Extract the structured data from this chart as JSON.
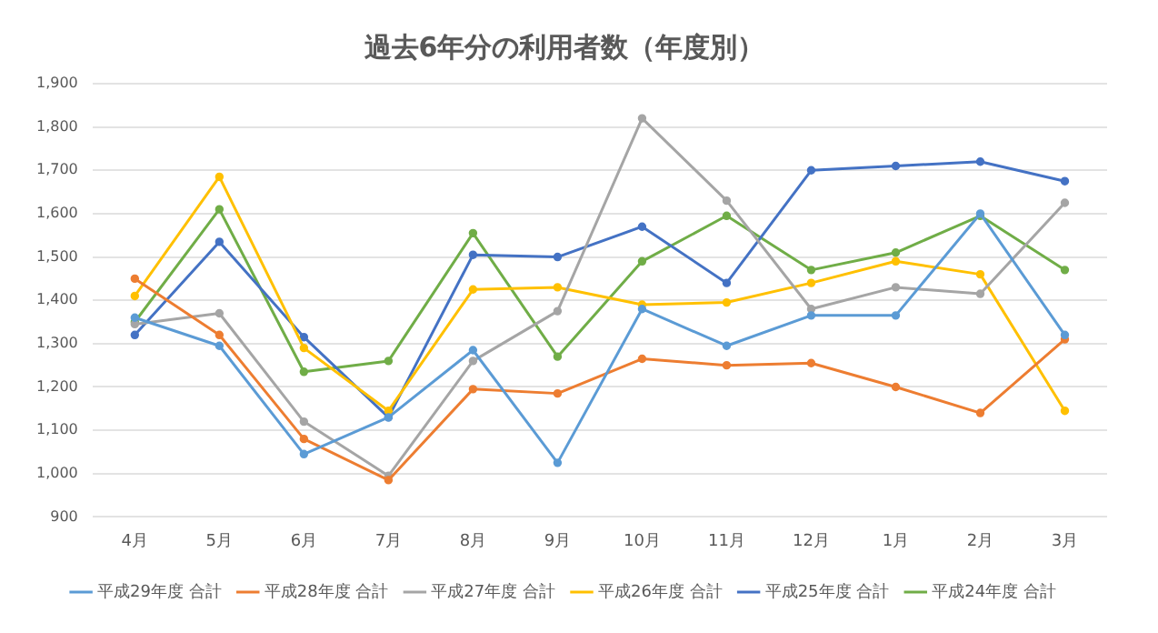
{
  "chart_data": {
    "type": "line",
    "title": "過去6年分の利用者数（年度別）",
    "categories": [
      "4月",
      "5月",
      "6月",
      "7月",
      "8月",
      "9月",
      "10月",
      "11月",
      "12月",
      "1月",
      "2月",
      "3月"
    ],
    "series": [
      {
        "name": "平成29年度 合計",
        "color": "#5b9bd5",
        "values": [
          1360,
          1295,
          1045,
          1130,
          1285,
          1025,
          1380,
          1295,
          1365,
          1365,
          1600,
          1320
        ]
      },
      {
        "name": "平成28年度 合計",
        "color": "#ed7d31",
        "values": [
          1450,
          1320,
          1080,
          985,
          1195,
          1185,
          1265,
          1250,
          1255,
          1200,
          1140,
          1310
        ]
      },
      {
        "name": "平成27年度 合計",
        "color": "#a5a5a5",
        "values": [
          1345,
          1370,
          1120,
          995,
          1260,
          1375,
          1820,
          1630,
          1380,
          1430,
          1415,
          1625
        ]
      },
      {
        "name": "平成26年度 合計",
        "color": "#ffc000",
        "values": [
          1410,
          1685,
          1290,
          1145,
          1425,
          1430,
          1390,
          1395,
          1440,
          1490,
          1460,
          1145
        ]
      },
      {
        "name": "平成25年度 合計",
        "color": "#4472c4",
        "values": [
          1320,
          1535,
          1315,
          1130,
          1505,
          1500,
          1570,
          1440,
          1700,
          1710,
          1720,
          1675
        ]
      },
      {
        "name": "平成24年度 合計",
        "color": "#70ad47",
        "values": [
          1350,
          1610,
          1235,
          1260,
          1555,
          1270,
          1490,
          1595,
          1470,
          1510,
          1595,
          1470
        ]
      }
    ],
    "ylim": [
      900,
      1900
    ],
    "yticks": [
      {
        "value": 900,
        "label": "900"
      },
      {
        "value": 1000,
        "label": "1,000"
      },
      {
        "value": 1100,
        "label": "1,100"
      },
      {
        "value": 1200,
        "label": "1,200"
      },
      {
        "value": 1300,
        "label": "1,300"
      },
      {
        "value": 1400,
        "label": "1,400"
      },
      {
        "value": 1500,
        "label": "1,500"
      },
      {
        "value": 1600,
        "label": "1,600"
      },
      {
        "value": 1700,
        "label": "1,700"
      },
      {
        "value": 1800,
        "label": "1,800"
      },
      {
        "value": 1900,
        "label": "1,900"
      }
    ],
    "grid": "y",
    "legend": "bottom",
    "marker": "circle",
    "line_style": "solid"
  }
}
